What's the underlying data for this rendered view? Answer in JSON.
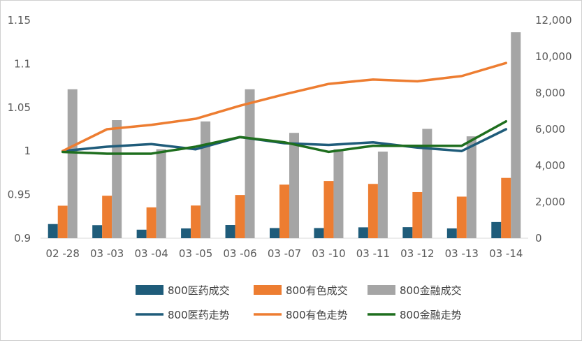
{
  "chart_data": {
    "type": "bar",
    "categories": [
      "02 -28",
      "03 -03",
      "03 -04",
      "03 -05",
      "03 -06",
      "03 -07",
      "03 -10",
      "03 -11",
      "03 -12",
      "03 -13",
      "03 -14"
    ],
    "y_left": {
      "min": 0.9,
      "max": 1.15,
      "step": 0.05,
      "ticks": [
        "0.9",
        "0.95",
        "1",
        "1.05",
        "1.1",
        "1.15"
      ]
    },
    "y_right": {
      "min": 0,
      "max": 12000,
      "step": 2000,
      "ticks": [
        "0",
        "2,000",
        "4,000",
        "6,000",
        "8,000",
        "10,000",
        "12,000"
      ]
    },
    "bar_series": [
      {
        "name": "800医药成交",
        "color": "#1f5c7a",
        "axis": "right",
        "values": [
          780,
          720,
          470,
          540,
          730,
          560,
          560,
          600,
          610,
          540,
          890
        ]
      },
      {
        "name": "800有色成交",
        "color": "#ed7d31",
        "axis": "right",
        "values": [
          1790,
          2340,
          1700,
          1800,
          2380,
          2950,
          3150,
          2990,
          2540,
          2290,
          3320
        ]
      },
      {
        "name": "800金融成交",
        "color": "#a5a5a5",
        "axis": "right",
        "values": [
          8200,
          6500,
          4900,
          6430,
          8200,
          5800,
          4900,
          4770,
          6020,
          5610,
          11340
        ]
      }
    ],
    "line_series": [
      {
        "name": "800医药走势",
        "color": "#1f5c7a",
        "axis": "left",
        "values": [
          1.0,
          1.005,
          1.008,
          1.002,
          1.016,
          1.009,
          1.007,
          1.01,
          1.004,
          1.0,
          1.025
        ]
      },
      {
        "name": "800有色走势",
        "color": "#ed7d31",
        "axis": "left",
        "values": [
          1.0,
          1.025,
          1.03,
          1.037,
          1.052,
          1.065,
          1.077,
          1.082,
          1.08,
          1.086,
          1.101
        ]
      },
      {
        "name": "800金融走势",
        "color": "#1e6e1e",
        "axis": "left",
        "values": [
          0.999,
          0.997,
          0.997,
          1.005,
          1.016,
          1.01,
          0.999,
          1.006,
          1.006,
          1.006,
          1.034
        ]
      }
    ],
    "title": "",
    "grid": false,
    "legend_position": "bottom"
  }
}
